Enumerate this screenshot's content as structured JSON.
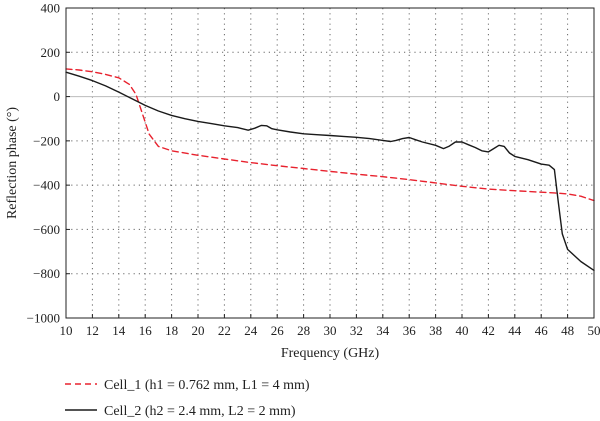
{
  "chart_data": {
    "type": "line",
    "title": "",
    "xlabel": "Frequency (GHz)",
    "ylabel": "Reflection phase (°)",
    "xlim": [
      10,
      50
    ],
    "ylim": [
      -1000,
      400
    ],
    "xticks": [
      10,
      12,
      14,
      16,
      18,
      20,
      22,
      24,
      26,
      28,
      30,
      32,
      34,
      36,
      38,
      40,
      42,
      44,
      46,
      48,
      50
    ],
    "yticks": [
      -1000,
      -800,
      -600,
      -400,
      -200,
      0,
      200,
      400
    ],
    "grid": "dotted",
    "zero_line": true,
    "legend_position": "bottom-left-below",
    "series": [
      {
        "name": "Cell_1 (h1 = 0.762 mm, L1 = 4 mm)",
        "color": "#e8222e",
        "dash": "dashed",
        "x": [
          10,
          11,
          12,
          13,
          14,
          14.8,
          15.3,
          15.8,
          16.3,
          17,
          18,
          20,
          22,
          24,
          26,
          28,
          30,
          32,
          34,
          36,
          38,
          40,
          42,
          44,
          46,
          47,
          48,
          49,
          50
        ],
        "y": [
          125,
          120,
          112,
          100,
          85,
          55,
          10,
          -80,
          -170,
          -225,
          -245,
          -265,
          -282,
          -298,
          -312,
          -325,
          -338,
          -350,
          -362,
          -375,
          -390,
          -405,
          -418,
          -425,
          -432,
          -435,
          -440,
          -450,
          -470
        ]
      },
      {
        "name": "Cell_2 (h2 = 2.4 mm, L2 = 2 mm)",
        "color": "#1a1a1a",
        "dash": "solid",
        "x": [
          10,
          11,
          12,
          13,
          14,
          15,
          16,
          17,
          18,
          19,
          20,
          21,
          22,
          23,
          23.8,
          24.3,
          24.8,
          25.2,
          25.6,
          26,
          27,
          28,
          29,
          30,
          31,
          32,
          33,
          34,
          34.6,
          35,
          35.5,
          36,
          36.5,
          37,
          38,
          38.6,
          39,
          39.5,
          40,
          40.5,
          41,
          41.5,
          42,
          42.4,
          42.8,
          43.2,
          43.6,
          44,
          45,
          46,
          46.6,
          47,
          47.3,
          47.6,
          48,
          49,
          50
        ],
        "y": [
          110,
          92,
          72,
          48,
          20,
          -10,
          -40,
          -65,
          -85,
          -100,
          -112,
          -122,
          -132,
          -140,
          -152,
          -143,
          -130,
          -132,
          -145,
          -150,
          -160,
          -168,
          -172,
          -176,
          -180,
          -184,
          -190,
          -198,
          -203,
          -198,
          -190,
          -185,
          -195,
          -205,
          -220,
          -235,
          -225,
          -205,
          -205,
          -218,
          -230,
          -245,
          -250,
          -235,
          -220,
          -225,
          -255,
          -270,
          -285,
          -305,
          -310,
          -330,
          -480,
          -620,
          -690,
          -745,
          -785
        ]
      }
    ]
  }
}
